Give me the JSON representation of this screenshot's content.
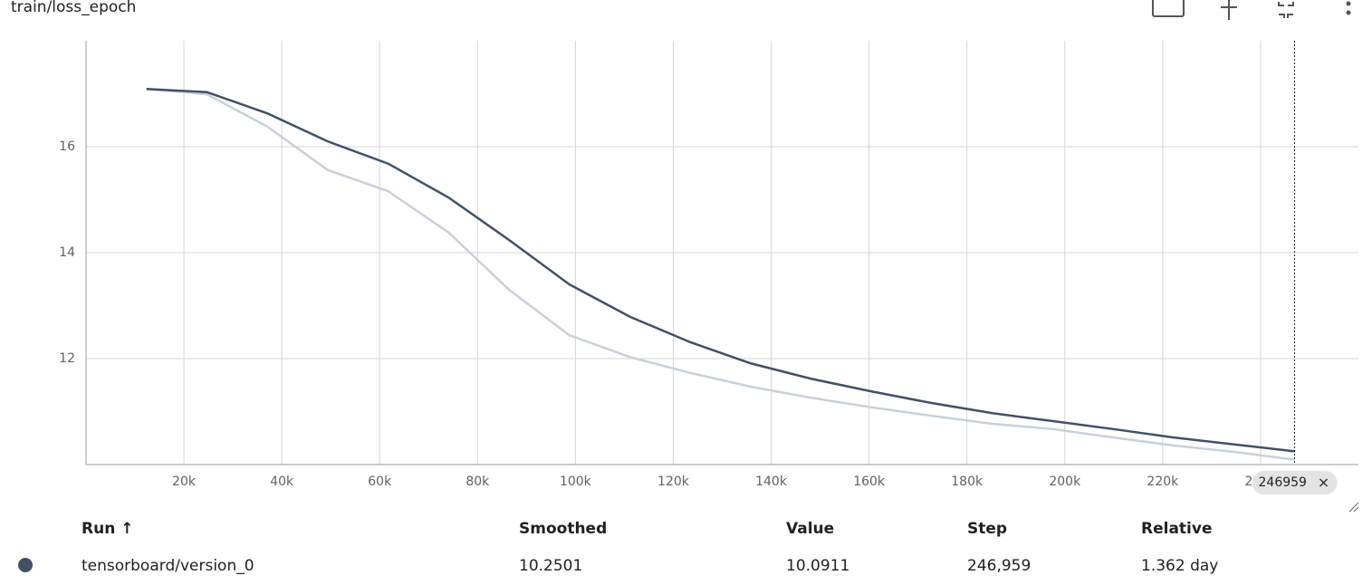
{
  "header": {
    "title": "train/loss_epoch"
  },
  "chart_data": {
    "type": "line",
    "x": [
      12348,
      24696,
      37044,
      49392,
      61740,
      74088,
      86436,
      98784,
      111132,
      123480,
      135828,
      148176,
      160524,
      172872,
      185220,
      197568,
      209916,
      222264,
      234612,
      246959
    ],
    "series": [
      {
        "color": "#c9d0da",
        "values": [
          17.09,
          16.99,
          16.38,
          15.56,
          15.16,
          14.38,
          13.3,
          12.44,
          12.03,
          11.73,
          11.47,
          11.26,
          11.08,
          10.92,
          10.77,
          10.67,
          10.51,
          10.36,
          10.24,
          10.0911
        ]
      },
      {
        "color": "#425066",
        "values": [
          17.09,
          17.03,
          16.63,
          16.1,
          15.68,
          15.04,
          14.24,
          13.4,
          12.79,
          12.31,
          11.91,
          11.62,
          11.38,
          11.16,
          10.97,
          10.82,
          10.67,
          10.51,
          10.38,
          10.2501
        ]
      }
    ],
    "xlim": [
      0,
      260000
    ],
    "ylim": [
      10,
      18
    ],
    "xticks": [
      {
        "value": 20000,
        "label": "20k"
      },
      {
        "value": 40000,
        "label": "40k"
      },
      {
        "value": 60000,
        "label": "60k"
      },
      {
        "value": 80000,
        "label": "80k"
      },
      {
        "value": 100000,
        "label": "100k"
      },
      {
        "value": 120000,
        "label": "120k"
      },
      {
        "value": 140000,
        "label": "140k"
      },
      {
        "value": 160000,
        "label": "160k"
      },
      {
        "value": 180000,
        "label": "180k"
      },
      {
        "value": 200000,
        "label": "200k"
      },
      {
        "value": 220000,
        "label": "220k"
      },
      {
        "value": 240000,
        "label": "240k"
      }
    ],
    "yticks": [
      12,
      14,
      16
    ],
    "grid": true,
    "cursor_step": 246959
  },
  "table": {
    "columns": [
      "Run ↑",
      "Smoothed",
      "Value",
      "Step",
      "Relative"
    ],
    "rows": [
      [
        "tensorboard/version_0",
        "10.2501",
        "10.0911",
        "246,959",
        "1.362 day"
      ]
    ]
  }
}
